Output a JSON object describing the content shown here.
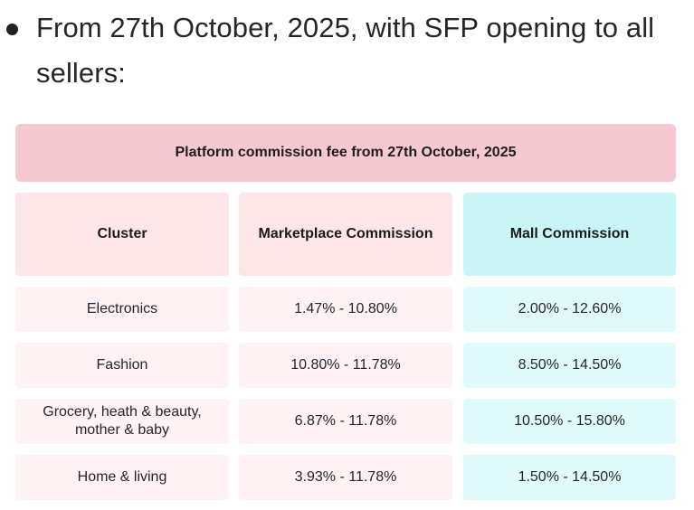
{
  "bullet": {
    "text": "From 27th October, 2025, with SFP opening to all sellers:"
  },
  "table": {
    "title": "Platform commission fee from 27th October, 2025",
    "headers": [
      "Cluster",
      "Marketplace Commission",
      "Mall Commission"
    ],
    "rows": [
      {
        "cluster": "Electronics",
        "marketplace": "1.47% - 10.80%",
        "mall": "2.00% - 12.60%"
      },
      {
        "cluster": "Fashion",
        "marketplace": "10.80% - 11.78%",
        "mall": "8.50% - 14.50%"
      },
      {
        "cluster": "Grocery, heath & beauty, mother & baby",
        "marketplace": "6.87% - 11.78%",
        "mall": "10.50% - 15.80%"
      },
      {
        "cluster": "Home & living",
        "marketplace": "3.93% - 11.78%",
        "mall": "1.50% - 14.50%"
      }
    ]
  },
  "colors": {
    "title_bg": "#f6c8d0",
    "header_pink": "#fde6e8",
    "header_cyan": "#c9f5f6",
    "cell_pink": "#fff1f4",
    "cell_cyan": "#e1fbfc"
  }
}
